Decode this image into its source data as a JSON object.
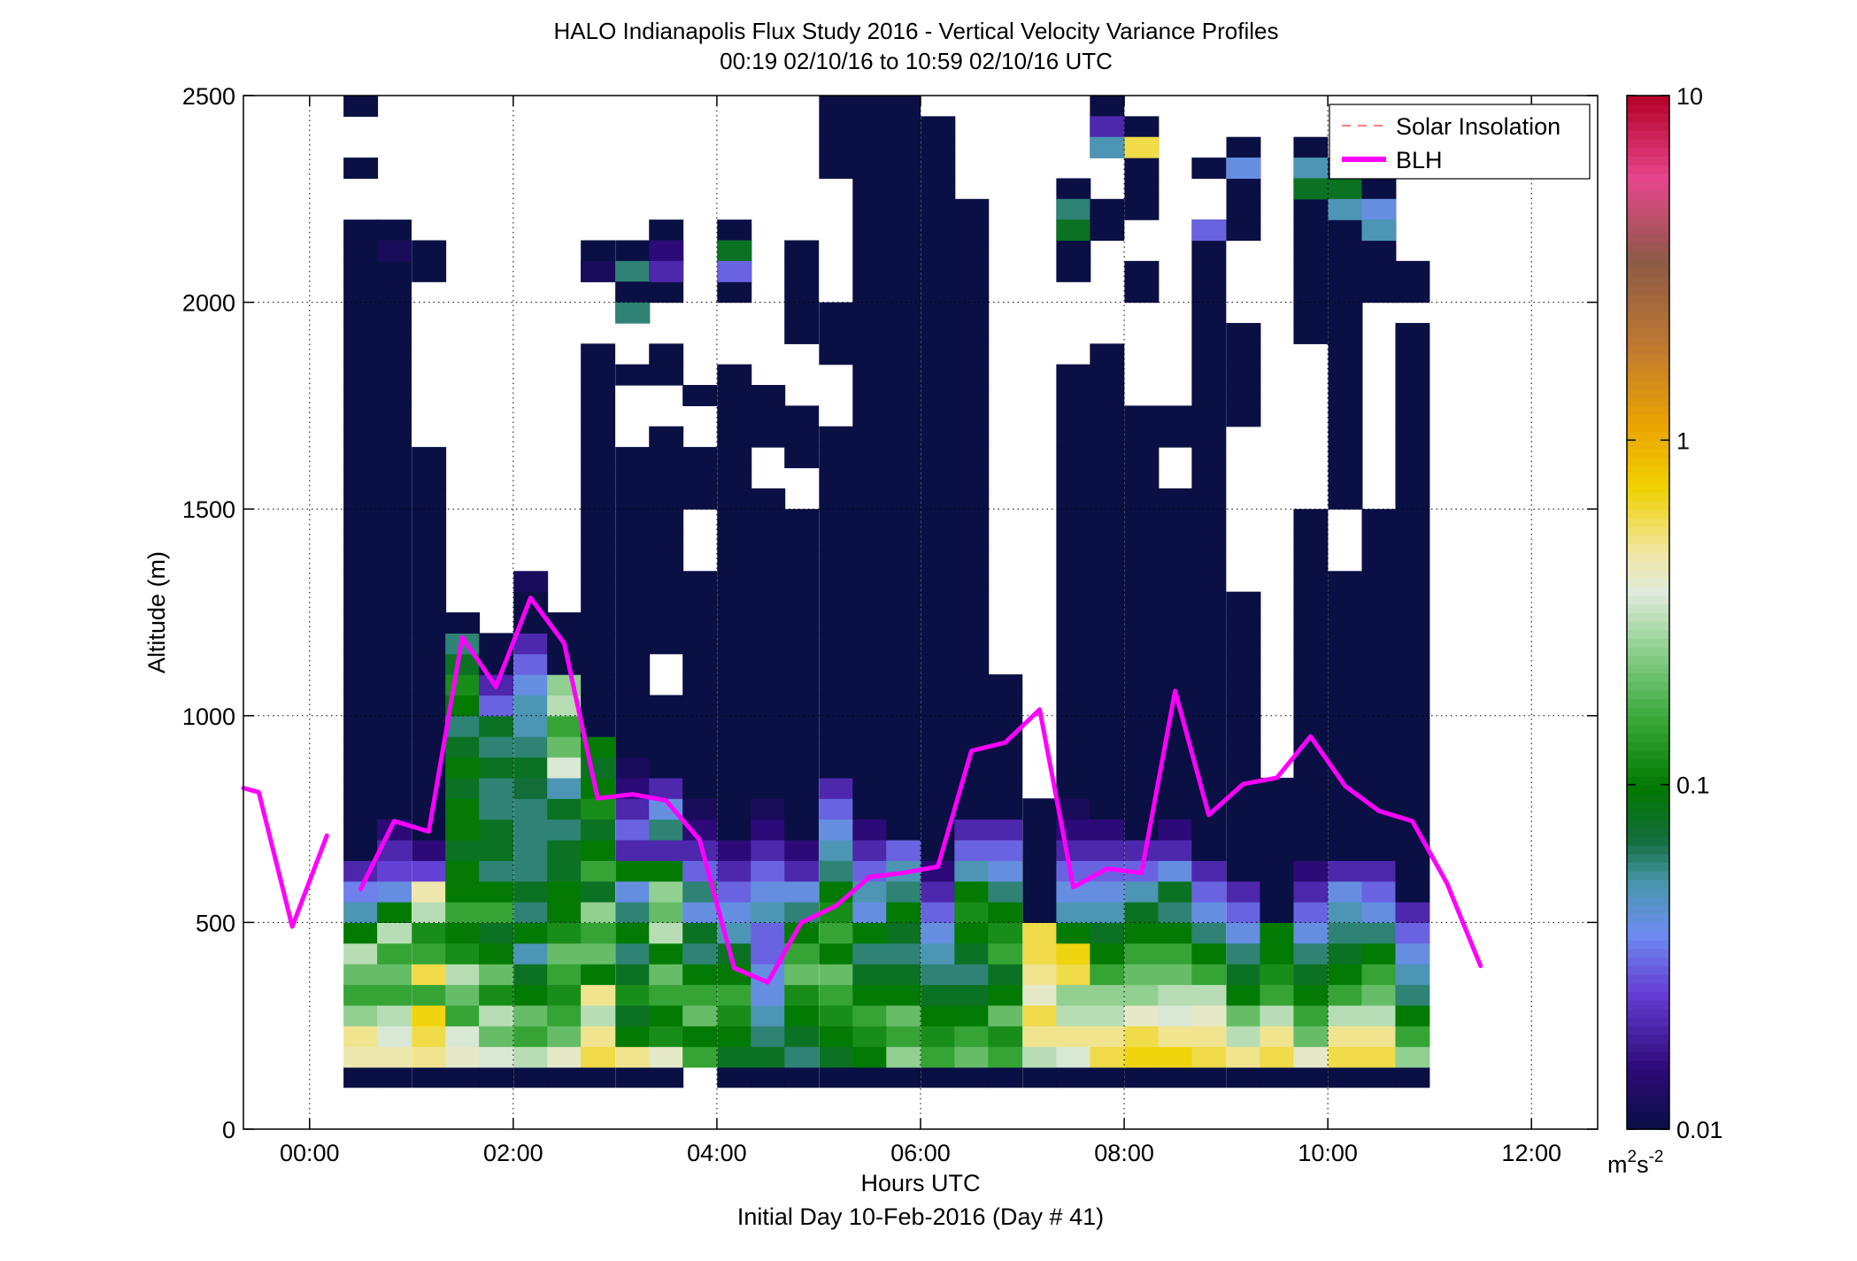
{
  "chart_data": {
    "type": "heatmap",
    "title": "HALO Indianapolis Flux Study 2016 - Vertical Velocity Variance Profiles",
    "subtitle": "00:19 02/10/16 to 10:59 02/10/16  UTC",
    "xlabel": "Hours UTC",
    "xlabel2": "Initial Day 10-Feb-2016 (Day # 41)",
    "ylabel": "Altitude (m)",
    "xlim": [
      -0.65,
      12.65
    ],
    "ylim": [
      0,
      2500
    ],
    "xticks": [
      {
        "value": 0,
        "label": "00:00"
      },
      {
        "value": 2,
        "label": "02:00"
      },
      {
        "value": 4,
        "label": "04:00"
      },
      {
        "value": 6,
        "label": "06:00"
      },
      {
        "value": 8,
        "label": "08:00"
      },
      {
        "value": 10,
        "label": "10:00"
      },
      {
        "value": 12,
        "label": "12:00"
      }
    ],
    "yticks": [
      {
        "value": 0,
        "label": "0"
      },
      {
        "value": 500,
        "label": "500"
      },
      {
        "value": 1000,
        "label": "1000"
      },
      {
        "value": 1500,
        "label": "1500"
      },
      {
        "value": 2000,
        "label": "2000"
      },
      {
        "value": 2500,
        "label": "2500"
      }
    ],
    "grid": true,
    "colorbar": {
      "scale": "log",
      "range": [
        0.01,
        10
      ],
      "ticks": [
        {
          "value": 0.01,
          "label": "0.01"
        },
        {
          "value": 0.1,
          "label": "0.1"
        },
        {
          "value": 1,
          "label": "1"
        },
        {
          "value": 10,
          "label": "10"
        }
      ],
      "unit_base": "m",
      "unit_sup1": "2",
      "unit_mid": "s",
      "unit_sup2": "-2"
    },
    "legend": {
      "placement": "top-right",
      "entries": [
        {
          "label": "Solar Insolation",
          "color": "#ff8080",
          "style": "dashed"
        },
        {
          "label": "BLH",
          "color": "#ff00ff",
          "style": "solid"
        }
      ]
    },
    "colors": {
      "background": "#ffffff",
      "grid": "#000000",
      "blh": "#ff00ff",
      "solar": "#ff8080",
      "fill_low": "#0a0f44"
    },
    "blh_segments": [
      [
        [
          -0.65,
          825
        ],
        [
          -0.5,
          815
        ],
        [
          -0.17,
          490
        ],
        [
          0.17,
          710
        ]
      ],
      [
        [
          0.5,
          580
        ],
        [
          0.83,
          745
        ],
        [
          1.17,
          720
        ],
        [
          1.5,
          1190
        ],
        [
          1.83,
          1070
        ],
        [
          2.17,
          1285
        ],
        [
          2.5,
          1175
        ],
        [
          2.83,
          800
        ],
        [
          3.17,
          810
        ],
        [
          3.5,
          795
        ],
        [
          3.83,
          700
        ],
        [
          4.17,
          390
        ],
        [
          4.5,
          355
        ],
        [
          4.83,
          500
        ],
        [
          5.17,
          540
        ],
        [
          5.5,
          610
        ],
        [
          5.83,
          620
        ],
        [
          6.17,
          635
        ],
        [
          6.5,
          915
        ],
        [
          6.83,
          935
        ],
        [
          7.17,
          1015
        ],
        [
          7.5,
          585
        ],
        [
          7.83,
          630
        ],
        [
          8.17,
          620
        ],
        [
          8.5,
          1060
        ],
        [
          8.83,
          760
        ],
        [
          9.17,
          835
        ],
        [
          9.5,
          850
        ],
        [
          9.83,
          950
        ],
        [
          10.17,
          830
        ],
        [
          10.5,
          770
        ],
        [
          10.83,
          745
        ],
        [
          11.17,
          595
        ],
        [
          11.5,
          395
        ]
      ]
    ],
    "profiles": [
      {
        "t": 0.5,
        "top": 2500,
        "cells": [
          [
            0.45,
            0.5,
            0.25,
            0.15,
            0.2,
            0.3,
            0.1,
            0.05,
            0.035,
            0.02
          ],
          [
            0.01,
            0.01,
            0.01
          ]
        ],
        "gaps": [
          [
            2350,
            2450
          ],
          [
            2200,
            2300
          ]
        ]
      },
      {
        "t": 0.83,
        "top": 2200,
        "cells": [
          [
            0.45,
            0.35,
            0.3,
            0.15,
            0.2,
            0.15,
            0.3,
            0.1,
            0.04,
            0.025,
            0.02,
            0.015
          ],
          [
            0.01,
            0.012
          ]
        ],
        "gaps": []
      },
      {
        "t": 1.17,
        "top": 2150,
        "cells": [
          [
            0.5,
            0.6,
            0.7,
            0.15,
            0.6,
            0.15,
            0.12,
            0.3,
            0.45,
            0.025,
            0.015,
            0.01
          ],
          [
            0.01
          ]
        ],
        "gaps": [
          [
            1650,
            2050
          ]
        ]
      },
      {
        "t": 1.5,
        "top": 1250,
        "cells": [
          [
            0.4,
            0.35,
            0.15,
            0.2,
            0.3,
            0.12,
            0.1,
            0.15,
            0.1,
            0.1,
            0.08,
            0.1,
            0.1,
            0.08,
            0.1,
            0.08,
            0.06,
            0.1,
            0.12,
            0.08,
            0.06
          ],
          []
        ],
        "gaps": []
      },
      {
        "t": 1.83,
        "top": 1200,
        "cells": [
          [
            0.35,
            0.2,
            0.3,
            0.12,
            0.2,
            0.1,
            0.08,
            0.15,
            0.1,
            0.06,
            0.08,
            0.08,
            0.06,
            0.06,
            0.08,
            0.06,
            0.08,
            0.03,
            0.02
          ],
          []
        ],
        "gaps": []
      },
      {
        "t": 2.17,
        "top": 1350,
        "cells": [
          [
            0.3,
            0.15,
            0.2,
            0.1,
            0.08,
            0.05,
            0.1,
            0.06,
            0.08,
            0.06,
            0.06,
            0.06,
            0.06,
            0.07,
            0.08,
            0.06,
            0.05,
            0.05,
            0.04,
            0.03,
            0.02,
            0.01
          ],
          [
            0.01,
            0.012
          ]
        ],
        "gaps": [
          [
            1650,
            2450
          ]
        ]
      },
      {
        "t": 2.5,
        "top": 1250,
        "cells": [
          [
            0.4,
            0.2,
            0.15,
            0.12,
            0.15,
            0.2,
            0.12,
            0.1,
            0.1,
            0.08,
            0.08,
            0.06,
            0.08,
            0.05,
            0.35,
            0.2,
            0.15,
            0.3,
            0.25
          ],
          []
        ],
        "gaps": []
      },
      {
        "t": 2.83,
        "top": 2150,
        "cells": [
          [
            0.6,
            0.5,
            0.3,
            0.5,
            0.1,
            0.2,
            0.15,
            0.25,
            0.08,
            0.15,
            0.1,
            0.08,
            0.12,
            0.1,
            0.08,
            0.1
          ],
          [
            0.01,
            0.012
          ]
        ],
        "gaps": [
          [
            1900,
            2050
          ]
        ]
      },
      {
        "t": 3.17,
        "top": 2150,
        "cells": [
          [
            0.5,
            0.1,
            0.08,
            0.12,
            0.08,
            0.06,
            0.1,
            0.06,
            0.04,
            0.1,
            0.02,
            0.03,
            0.02,
            0.015,
            0.012,
            0.01
          ],
          [
            0.01,
            0.06,
            0.01,
            0.06
          ]
        ],
        "gaps": [
          [
            1850,
            1950
          ],
          [
            1650,
            1800
          ]
        ]
      },
      {
        "t": 3.5,
        "top": 2200,
        "cells": [
          [
            0.4,
            0.12,
            0.1,
            0.15,
            0.2,
            0.1,
            0.3,
            0.2,
            0.25,
            0.1,
            0.02,
            0.06,
            0.04,
            0.02
          ],
          [
            0.01,
            0.015,
            0.02
          ]
        ],
        "gaps": [
          [
            1050,
            1150
          ],
          [
            1700,
            1800
          ],
          [
            1900,
            2000
          ]
        ]
      },
      {
        "t": 3.83,
        "top": 1900,
        "cells": [
          [
            0.15,
            0.1,
            0.2,
            0.15,
            0.1,
            0.06,
            0.08,
            0.04,
            0.06,
            0.03,
            0.02,
            0.015,
            0.012,
            0.01
          ],
          [
            0.01
          ]
        ],
        "gaps": [
          [
            1350,
            1500
          ],
          [
            1650,
            1750
          ],
          [
            1800,
            1900
          ]
        ]
      },
      {
        "t": 4.17,
        "top": 2200,
        "cells": [
          [
            0.08,
            0.1,
            0.12,
            0.15,
            0.1,
            0.08,
            0.05,
            0.04,
            0.03,
            0.02,
            0.015,
            0.01
          ],
          [
            0.01,
            0.08,
            0.03
          ]
        ],
        "gaps": [
          [
            1850,
            2000
          ]
        ]
      },
      {
        "t": 4.5,
        "top": 2150,
        "cells": [
          [
            0.08,
            0.06,
            0.05,
            0.04,
            0.04,
            0.03,
            0.03,
            0.05,
            0.04,
            0.03,
            0.02,
            0.015,
            0.012
          ],
          [
            0.01
          ]
        ],
        "gaps": [
          [
            1550,
            1650
          ],
          [
            1800,
            2150
          ]
        ]
      },
      {
        "t": 4.83,
        "top": 2250,
        "cells": [
          [
            0.06,
            0.08,
            0.1,
            0.12,
            0.2,
            0.15,
            0.1,
            0.06,
            0.04,
            0.02,
            0.015
          ],
          [
            0.01
          ]
        ],
        "gaps": [
          [
            1500,
            1600
          ],
          [
            1750,
            1900
          ],
          [
            2150,
            2250
          ]
        ]
      },
      {
        "t": 5.17,
        "top": 2500,
        "cells": [
          [
            0.08,
            0.1,
            0.12,
            0.15,
            0.2,
            0.1,
            0.15,
            0.12,
            0.1,
            0.06,
            0.05,
            0.04,
            0.03,
            0.02
          ],
          [
            0.01
          ]
        ],
        "gaps": [
          [
            1700,
            1850
          ],
          [
            2000,
            2300
          ]
        ]
      },
      {
        "t": 5.5,
        "top": 2500,
        "cells": [
          [
            0.1,
            0.12,
            0.15,
            0.1,
            0.08,
            0.06,
            0.1,
            0.04,
            0.05,
            0.03,
            0.02,
            0.015
          ],
          [
            0.01
          ]
        ],
        "gaps": []
      },
      {
        "t": 5.83,
        "top": 2500,
        "cells": [
          [
            0.25,
            0.15,
            0.2,
            0.1,
            0.08,
            0.06,
            0.08,
            0.1,
            0.06,
            0.05,
            0.03
          ],
          [
            0.01
          ]
        ],
        "gaps": []
      },
      {
        "t": 6.17,
        "top": 2450,
        "cells": [
          [
            0.15,
            0.12,
            0.1,
            0.08,
            0.06,
            0.05,
            0.04,
            0.03,
            0.02,
            0.015
          ],
          [
            0.01
          ]
        ],
        "gaps": []
      },
      {
        "t": 6.5,
        "top": 2250,
        "cells": [
          [
            0.2,
            0.15,
            0.1,
            0.08,
            0.06,
            0.08,
            0.1,
            0.12,
            0.1,
            0.05,
            0.03,
            0.02
          ],
          [
            0.01
          ]
        ],
        "gaps": []
      },
      {
        "t": 6.83,
        "top": 1100,
        "cells": [
          [
            0.15,
            0.12,
            0.2,
            0.1,
            0.08,
            0.15,
            0.12,
            0.1,
            0.06,
            0.04,
            0.03,
            0.02
          ],
          []
        ],
        "gaps": []
      },
      {
        "t": 7.17,
        "top": 800,
        "cells": [
          [
            0.3,
            0.5,
            0.6,
            0.4,
            0.5,
            0.6,
            0.6
          ],
          []
        ],
        "gaps": []
      },
      {
        "t": 7.5,
        "top": 2300,
        "cells": [
          [
            0.35,
            0.5,
            0.3,
            0.25,
            0.6,
            0.7,
            0.1,
            0.05,
            0.04,
            0.03,
            0.02,
            0.015,
            0.012
          ],
          [
            0.01,
            0.06,
            0.08
          ]
        ],
        "gaps": [
          [
            1850,
            2050
          ]
        ]
      },
      {
        "t": 7.83,
        "top": 2500,
        "cells": [
          [
            0.6,
            0.5,
            0.3,
            0.25,
            0.15,
            0.1,
            0.08,
            0.05,
            0.04,
            0.03,
            0.02,
            0.015
          ],
          [
            0.01,
            0.02,
            0.05
          ]
        ],
        "gaps": [
          [
            1900,
            2150
          ],
          [
            2250,
            2350
          ]
        ]
      },
      {
        "t": 8.17,
        "top": 2450,
        "cells": [
          [
            0.7,
            0.6,
            0.4,
            0.25,
            0.2,
            0.15,
            0.1,
            0.08,
            0.05,
            0.03,
            0.02
          ],
          [
            0.01,
            0.6
          ]
        ],
        "gaps": [
          [
            1750,
            2000
          ],
          [
            2100,
            2200
          ]
        ]
      },
      {
        "t": 8.5,
        "top": 1950,
        "cells": [
          [
            0.7,
            0.5,
            0.35,
            0.3,
            0.2,
            0.15,
            0.1,
            0.06,
            0.08,
            0.04,
            0.02,
            0.015
          ],
          [
            0.01
          ]
        ],
        "gaps": [
          [
            1550,
            1650
          ],
          [
            1750,
            1950
          ]
        ]
      },
      {
        "t": 8.83,
        "top": 2350,
        "cells": [
          [
            0.6,
            0.5,
            0.4,
            0.3,
            0.15,
            0.1,
            0.06,
            0.04,
            0.03,
            0.02
          ],
          [
            0.01,
            0.1,
            0.06,
            0.03
          ]
        ],
        "gaps": [
          [
            2200,
            2300
          ]
        ]
      },
      {
        "t": 9.17,
        "top": 2400,
        "cells": [
          [
            0.5,
            0.3,
            0.2,
            0.1,
            0.08,
            0.06,
            0.04,
            0.03,
            0.02
          ],
          [
            0.01,
            0.04
          ]
        ],
        "gaps": [
          [
            1300,
            1700
          ],
          [
            1950,
            2150
          ]
        ]
      },
      {
        "t": 9.5,
        "top": 850,
        "cells": [
          [
            0.6,
            0.5,
            0.3,
            0.15,
            0.12,
            0.1,
            0.1
          ],
          []
        ],
        "gaps": []
      },
      {
        "t": 9.83,
        "top": 2400,
        "cells": [
          [
            0.4,
            0.2,
            0.15,
            0.1,
            0.08,
            0.06,
            0.04,
            0.03,
            0.02,
            0.015
          ],
          [
            0.01,
            0.05,
            0.08
          ]
        ],
        "gaps": [
          [
            1500,
            1900
          ]
        ]
      },
      {
        "t": 10.17,
        "top": 2350,
        "cells": [
          [
            0.6,
            0.5,
            0.3,
            0.15,
            0.1,
            0.08,
            0.06,
            0.05,
            0.04,
            0.02
          ],
          [
            0.01,
            0.08,
            0.05
          ]
        ],
        "gaps": [
          [
            1350,
            1500
          ]
        ]
      },
      {
        "t": 10.5,
        "top": 2300,
        "cells": [
          [
            0.6,
            0.5,
            0.3,
            0.2,
            0.15,
            0.1,
            0.06,
            0.04,
            0.03,
            0.02
          ],
          [
            0.01,
            0.04,
            0.05
          ]
        ],
        "gaps": [
          [
            1500,
            2000
          ]
        ]
      },
      {
        "t": 10.83,
        "top": 2100,
        "cells": [
          [
            0.25,
            0.15,
            0.1,
            0.06,
            0.05,
            0.04,
            0.03,
            0.02
          ],
          [
            0.01
          ]
        ],
        "gaps": [
          [
            1950,
            2000
          ]
        ]
      }
    ]
  }
}
